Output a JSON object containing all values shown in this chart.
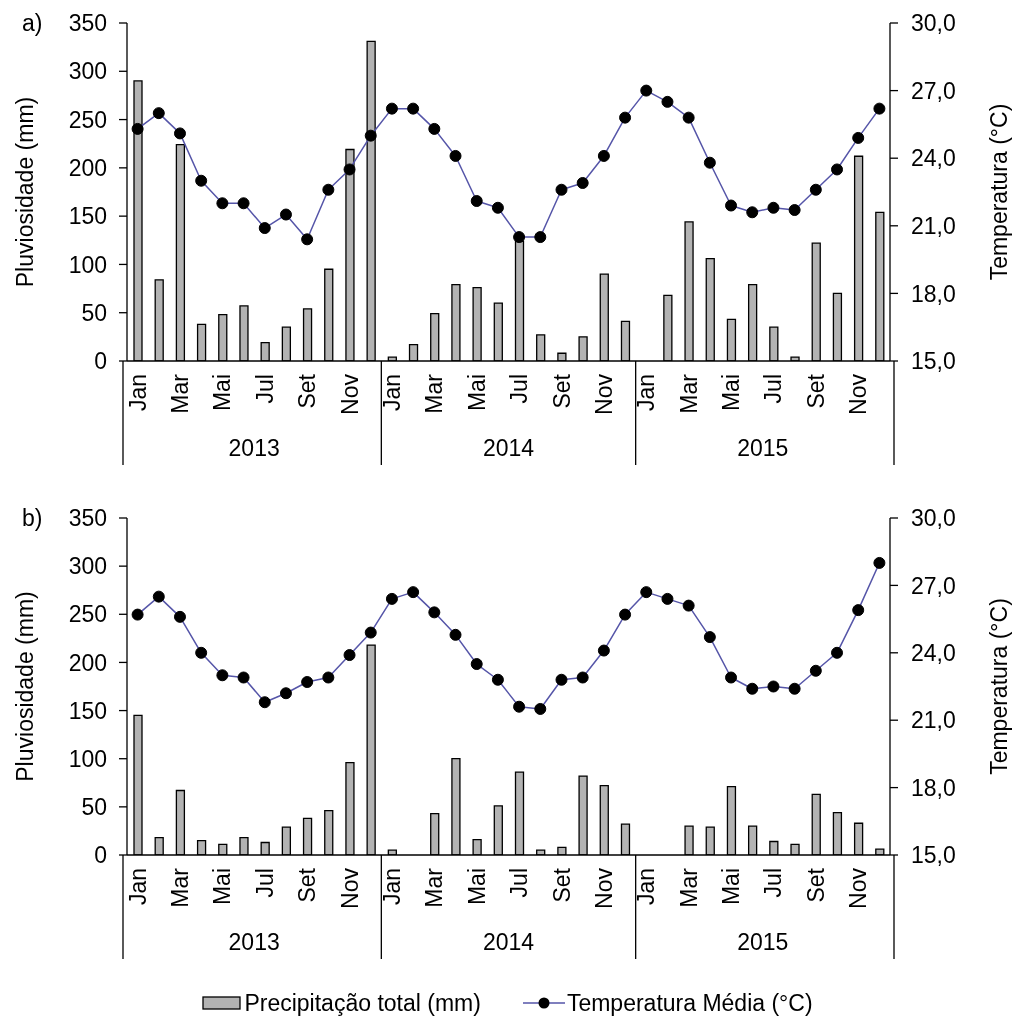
{
  "chart_data": [
    {
      "type": "bar",
      "title": "a)",
      "ylabel": "Pluviosidade (mm)",
      "y2label": "Temperatura (°C)",
      "categories": [
        "Jan",
        null,
        "Mar",
        null,
        "Mai",
        null,
        "Jul",
        null,
        "Set",
        null,
        "Nov",
        null,
        "Jan",
        null,
        "Mar",
        null,
        "Mai",
        null,
        "Jul",
        null,
        "Set",
        null,
        "Nov",
        null,
        "Jan",
        null,
        "Mar",
        null,
        "Mai",
        null,
        "Jul",
        null,
        "Set",
        null,
        "Nov",
        null
      ],
      "series": [
        {
          "color": "#b3b3b3",
          "values": [
            290,
            84,
            224,
            38,
            48,
            57,
            19,
            35,
            54,
            95,
            219,
            331,
            4,
            17,
            49,
            79,
            76,
            60,
            124,
            27,
            8,
            25,
            90,
            41,
            0,
            68,
            144,
            106,
            43,
            79,
            35,
            4,
            122,
            70,
            212,
            154
          ]
        },
        {
          "type": "line",
          "axis": "y2",
          "color": "#5555a8",
          "values": [
            25.3,
            26.0,
            25.1,
            23.0,
            22.0,
            22.0,
            20.9,
            21.5,
            20.4,
            22.6,
            23.5,
            25.0,
            26.2,
            26.2,
            25.3,
            24.1,
            22.1,
            21.8,
            20.5,
            20.5,
            22.6,
            22.9,
            24.1,
            25.8,
            27.0,
            26.5,
            25.8,
            23.8,
            21.9,
            21.6,
            21.8,
            21.7,
            22.6,
            23.5,
            24.9,
            26.2
          ]
        }
      ],
      "ylim": [
        0,
        350
      ],
      "yticks": [
        0,
        50,
        100,
        150,
        200,
        250,
        300,
        350
      ],
      "y2lim": [
        15,
        30
      ],
      "y2ticks": [
        {
          "value": 15,
          "label": "15,0"
        },
        {
          "value": 18,
          "label": "18,0"
        },
        {
          "value": 21,
          "label": "21,0"
        },
        {
          "value": 24,
          "label": "24,0"
        },
        {
          "value": 27,
          "label": "27,0"
        },
        {
          "value": 30,
          "label": "30,0"
        }
      ],
      "marker": "circle",
      "line_style": "solid",
      "annotations": [
        "2013",
        "2014",
        "2015"
      ]
    },
    {
      "type": "bar",
      "title": "b)",
      "ylabel": "Pluviosidade (mm)",
      "y2label": "Temperatura (°C)",
      "categories": [
        "Jan",
        null,
        "Mar",
        null,
        "Mai",
        null,
        "Jul",
        null,
        "Set",
        null,
        "Nov",
        null,
        "Jan",
        null,
        "Mar",
        null,
        "Mai",
        null,
        "Jul",
        null,
        "Set",
        null,
        "Nov",
        null,
        "Jan",
        null,
        "Mar",
        null,
        "Mai",
        null,
        "Jul",
        null,
        "Set",
        null,
        "Nov",
        null
      ],
      "series": [
        {
          "name": "Precipitação total (mm)",
          "color": "#b3b3b3",
          "values": [
            145,
            18,
            67,
            15,
            11,
            18,
            13,
            29,
            38,
            46,
            96,
            218,
            5,
            0,
            43,
            100,
            16,
            51,
            86,
            5,
            8,
            82,
            72,
            32,
            0,
            0,
            30,
            29,
            71,
            30,
            14,
            11,
            63,
            44,
            33,
            6
          ]
        },
        {
          "name": "Temperatura Média (°C)",
          "type": "line",
          "axis": "y2",
          "color": "#5555a8",
          "values": [
            25.7,
            26.5,
            25.6,
            24.0,
            23.0,
            22.9,
            21.8,
            22.2,
            22.7,
            22.9,
            23.9,
            24.9,
            26.4,
            26.7,
            25.8,
            24.8,
            23.5,
            22.8,
            21.6,
            21.5,
            22.8,
            22.9,
            24.1,
            25.7,
            26.7,
            26.4,
            26.1,
            24.7,
            22.9,
            22.4,
            22.5,
            22.4,
            23.2,
            24.0,
            25.9,
            28.0
          ]
        }
      ],
      "ylim": [
        0,
        350
      ],
      "yticks": [
        0,
        50,
        100,
        150,
        200,
        250,
        300,
        350
      ],
      "y2lim": [
        15,
        30
      ],
      "y2ticks": [
        {
          "value": 15,
          "label": "15,0"
        },
        {
          "value": 18,
          "label": "18,0"
        },
        {
          "value": 21,
          "label": "21,0"
        },
        {
          "value": 24,
          "label": "24,0"
        },
        {
          "value": 27,
          "label": "27,0"
        },
        {
          "value": 30,
          "label": "30,0"
        }
      ],
      "marker": "circle",
      "line_style": "solid",
      "legend": "bottom",
      "annotations": [
        "2013",
        "2014",
        "2015"
      ]
    }
  ]
}
